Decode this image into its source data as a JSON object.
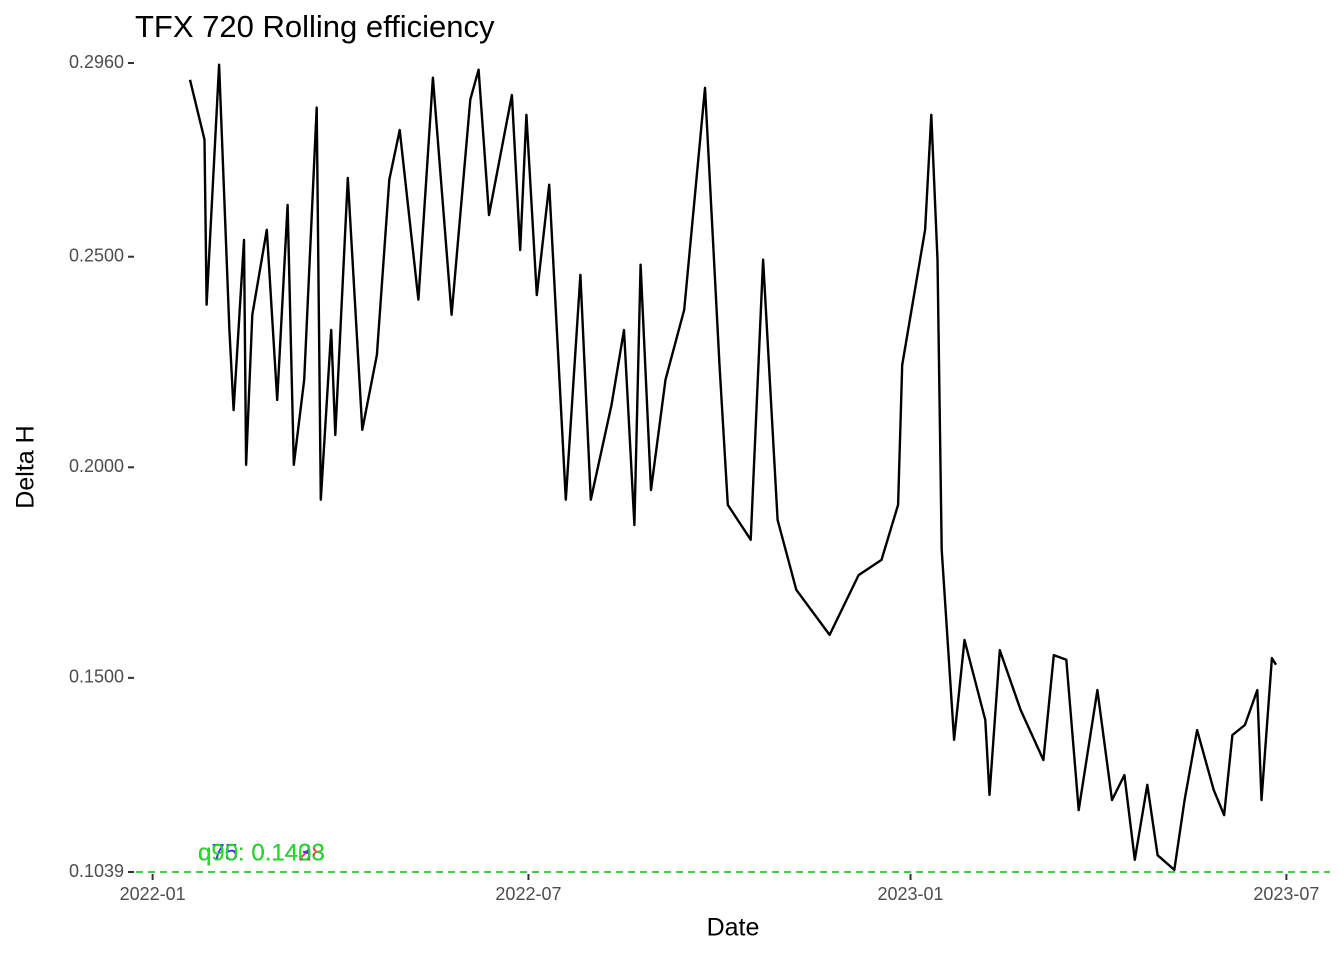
{
  "chart_data": {
    "type": "line",
    "title": "TFX 720 Rolling efficiency",
    "x_label": "Date",
    "y_label": "Delta H",
    "x": [
      "2022-01-19",
      "2022-01-26",
      "2022-01-27",
      "2022-02-02",
      "2022-02-07",
      "2022-02-09",
      "2022-02-14",
      "2022-02-15",
      "2022-02-18",
      "2022-02-25",
      "2022-03-02",
      "2022-03-07",
      "2022-03-10",
      "2022-03-15",
      "2022-03-21",
      "2022-03-23",
      "2022-03-28",
      "2022-03-30",
      "2022-04-05",
      "2022-04-12",
      "2022-04-19",
      "2022-04-25",
      "2022-04-30",
      "2022-05-09",
      "2022-05-16",
      "2022-05-25",
      "2022-06-03",
      "2022-06-07",
      "2022-06-12",
      "2022-06-23",
      "2022-06-27",
      "2022-06-30",
      "2022-07-05",
      "2022-07-11",
      "2022-07-19",
      "2022-07-26",
      "2022-07-31",
      "2022-08-10",
      "2022-08-16",
      "2022-08-21",
      "2022-08-24",
      "2022-08-29",
      "2022-09-05",
      "2022-09-14",
      "2022-09-24",
      "2022-10-01",
      "2022-10-05",
      "2022-10-16",
      "2022-10-22",
      "2022-10-29",
      "2022-11-07",
      "2022-11-23",
      "2022-12-07",
      "2022-12-18",
      "2022-12-26",
      "2022-12-28",
      "2023-01-08",
      "2023-01-11",
      "2023-01-14",
      "2023-01-16",
      "2023-01-22",
      "2023-01-27",
      "2023-02-06",
      "2023-02-08",
      "2023-02-13",
      "2023-02-23",
      "2023-03-06",
      "2023-03-11",
      "2023-03-17",
      "2023-03-23",
      "2023-04-01",
      "2023-04-08",
      "2023-04-14",
      "2023-04-19",
      "2023-04-25",
      "2023-04-30",
      "2023-05-08",
      "2023-05-13",
      "2023-05-19",
      "2023-05-27",
      "2023-06-01",
      "2023-06-05",
      "2023-06-11",
      "2023-06-17",
      "2023-06-19",
      "2023-06-24",
      "2023-06-26"
    ],
    "series": [
      {
        "name": "Delta H",
        "color": "#000000",
        "values": [
          0.292,
          0.2778,
          0.2386,
          0.2956,
          0.2326,
          0.2136,
          0.254,
          0.2006,
          0.2362,
          0.2564,
          0.216,
          0.2623,
          0.2006,
          0.2208,
          0.2854,
          0.1923,
          0.2326,
          0.2077,
          0.2687,
          0.2089,
          0.2267,
          0.2683,
          0.2801,
          0.2398,
          0.2925,
          0.2362,
          0.2873,
          0.2944,
          0.2599,
          0.2884,
          0.2516,
          0.2837,
          0.2409,
          0.2671,
          0.1923,
          0.2457,
          0.1923,
          0.2148,
          0.2326,
          0.1863,
          0.2481,
          0.1946,
          0.2208,
          0.2374,
          0.2901,
          0.2243,
          0.1911,
          0.1828,
          0.2493,
          0.1875,
          0.1709,
          0.1602,
          0.1744,
          0.178,
          0.1911,
          0.2243,
          0.2564,
          0.2837,
          0.2493,
          0.1804,
          0.1353,
          0.159,
          0.14,
          0.1222,
          0.1566,
          0.1424,
          0.1305,
          0.1554,
          0.1543,
          0.1186,
          0.1471,
          0.121,
          0.1269,
          0.1068,
          0.1246,
          0.1079,
          0.1044,
          0.121,
          0.1376,
          0.1234,
          0.1174,
          0.1364,
          0.1388,
          0.1471,
          0.121,
          0.1547,
          0.1531
        ]
      }
    ],
    "xlim": [
      "2021-12-24",
      "2023-07-22"
    ],
    "xticks": [
      {
        "value": "2022-01-01",
        "label": "2022-01"
      },
      {
        "value": "2022-07-01",
        "label": "2022-07"
      },
      {
        "value": "2023-01-01",
        "label": "2023-01"
      },
      {
        "value": "2023-07-01",
        "label": "2023-07"
      }
    ],
    "ylim": [
      0.1039,
      0.296
    ],
    "yticks": [
      {
        "value": 0.1039,
        "label": "0.1039"
      },
      {
        "value": 0.15,
        "label": "0.1500"
      },
      {
        "value": 0.2,
        "label": "0.2000"
      },
      {
        "value": 0.25,
        "label": "0.2500"
      },
      {
        "value": 0.296,
        "label": "0.2960"
      }
    ],
    "hline": {
      "value": 0.1039,
      "color": "#00bb00"
    },
    "annotations": [
      {
        "text": "q95: 0.1428",
        "color": "#ff3333"
      },
      {
        "text": "q75: 0.1433",
        "color": "#3333ff"
      },
      {
        "text": "q90: 0.1403",
        "color": "#22dd22"
      }
    ]
  }
}
